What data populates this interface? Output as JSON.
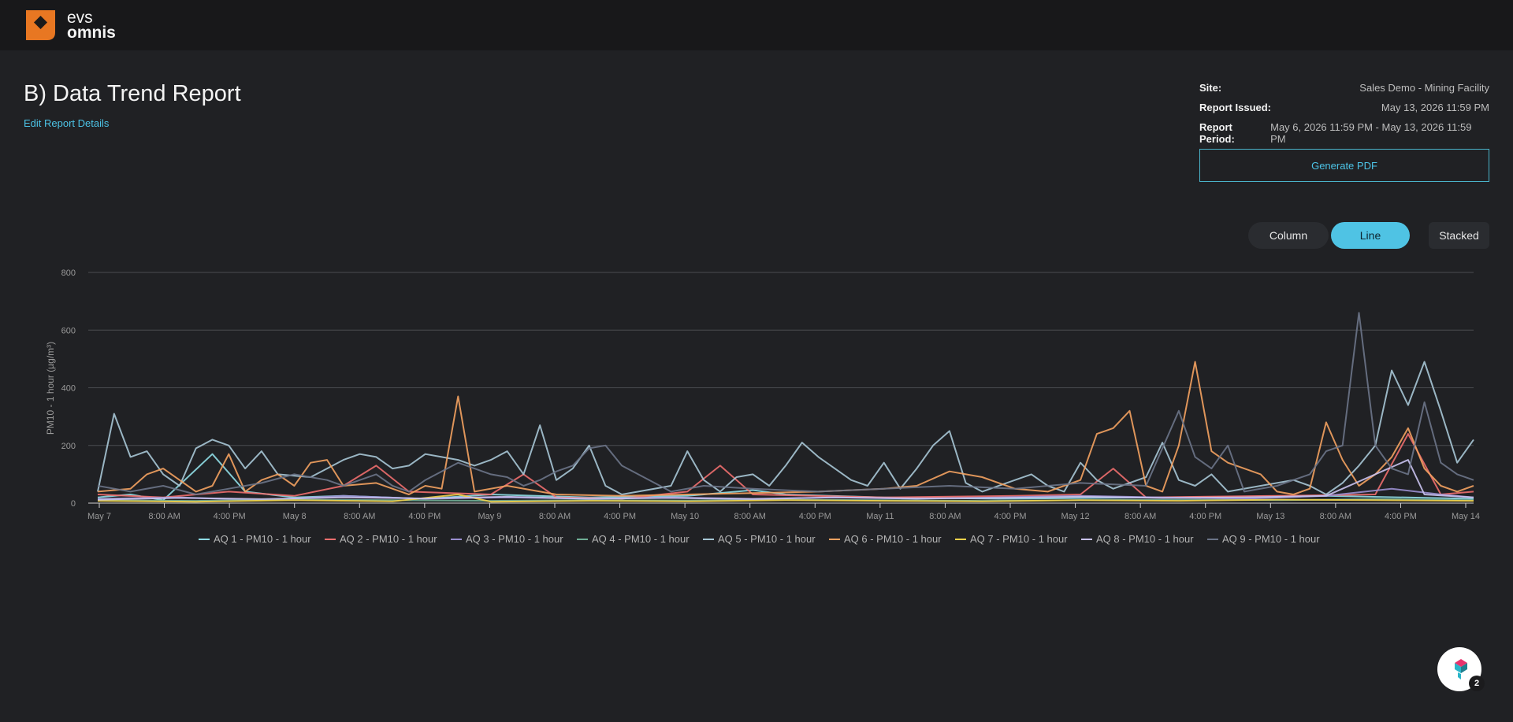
{
  "brand": {
    "line1": "evs",
    "line2": "omnis",
    "color": "#e87722"
  },
  "page": {
    "title": "B) Data Trend Report",
    "edit_link": "Edit Report Details"
  },
  "meta": {
    "site_label": "Site:",
    "site_value": "Sales Demo - Mining Facility",
    "issued_label": "Report Issued:",
    "issued_value": "May 13, 2026 11:59 PM",
    "period_label": "Report Period:",
    "period_value": "May 6, 2026 11:59 PM - May 13, 2026 11:59 PM"
  },
  "actions": {
    "generate_pdf": "Generate PDF"
  },
  "chart_types": {
    "column": "Column",
    "line": "Line",
    "stacked": "Stacked",
    "selected": "Line"
  },
  "chat": {
    "badge_count": "2"
  },
  "chart_data": {
    "type": "line",
    "ylabel": "PM10 - 1 hour (µg/m³)",
    "ylim": [
      0,
      800
    ],
    "yticks": [
      0,
      200,
      400,
      600,
      800
    ],
    "grid": true,
    "legend_position": "bottom",
    "x_start": "May 7",
    "x_end": "May 14",
    "x_tick_labels": [
      "May 7",
      "8:00 AM",
      "4:00 PM",
      "May 8",
      "8:00 AM",
      "4:00 PM",
      "May 9",
      "8:00 AM",
      "4:00 PM",
      "May 10",
      "8:00 AM",
      "4:00 PM",
      "May 11",
      "8:00 AM",
      "4:00 PM",
      "May 12",
      "8:00 AM",
      "4:00 PM",
      "May 13",
      "8:00 AM",
      "4:00 PM",
      "May 14"
    ],
    "series": [
      {
        "name": "AQ 1 - PM10 - 1 hour",
        "color": "#8fdde6",
        "points": [
          [
            0,
            20
          ],
          [
            4,
            30
          ],
          [
            8,
            10
          ],
          [
            14,
            170
          ],
          [
            18,
            40
          ],
          [
            24,
            20
          ],
          [
            30,
            25
          ],
          [
            40,
            15
          ],
          [
            48,
            30
          ],
          [
            60,
            20
          ],
          [
            72,
            25
          ],
          [
            80,
            45
          ],
          [
            84,
            30
          ],
          [
            96,
            20
          ],
          [
            110,
            15
          ],
          [
            130,
            20
          ],
          [
            150,
            25
          ],
          [
            168,
            15
          ]
        ]
      },
      {
        "name": "AQ 2 - PM10 - 1 hour",
        "color": "#ee6e6e",
        "points": [
          [
            0,
            30
          ],
          [
            8,
            20
          ],
          [
            16,
            40
          ],
          [
            24,
            25
          ],
          [
            30,
            60
          ],
          [
            34,
            130
          ],
          [
            38,
            40
          ],
          [
            48,
            30
          ],
          [
            52,
            100
          ],
          [
            56,
            20
          ],
          [
            64,
            15
          ],
          [
            72,
            40
          ],
          [
            76,
            130
          ],
          [
            80,
            30
          ],
          [
            96,
            20
          ],
          [
            112,
            25
          ],
          [
            120,
            30
          ],
          [
            124,
            120
          ],
          [
            128,
            20
          ],
          [
            144,
            25
          ],
          [
            156,
            30
          ],
          [
            160,
            240
          ],
          [
            164,
            30
          ],
          [
            168,
            40
          ]
        ]
      },
      {
        "name": "AQ 3 - PM10 - 1 hour",
        "color": "#9a8fd0",
        "points": [
          [
            0,
            15
          ],
          [
            10,
            20
          ],
          [
            20,
            10
          ],
          [
            30,
            25
          ],
          [
            40,
            15
          ],
          [
            50,
            20
          ],
          [
            60,
            15
          ],
          [
            70,
            20
          ],
          [
            80,
            15
          ],
          [
            90,
            20
          ],
          [
            100,
            15
          ],
          [
            110,
            20
          ],
          [
            120,
            25
          ],
          [
            130,
            20
          ],
          [
            140,
            15
          ],
          [
            150,
            25
          ],
          [
            158,
            50
          ],
          [
            164,
            30
          ],
          [
            168,
            20
          ]
        ]
      },
      {
        "name": "AQ 4 - PM10 - 1 hour",
        "color": "#6fae95",
        "points": [
          [
            0,
            10
          ],
          [
            12,
            8
          ],
          [
            24,
            12
          ],
          [
            36,
            10
          ],
          [
            48,
            8
          ],
          [
            60,
            10
          ],
          [
            72,
            9
          ],
          [
            84,
            12
          ],
          [
            96,
            10
          ],
          [
            108,
            8
          ],
          [
            120,
            10
          ],
          [
            132,
            12
          ],
          [
            144,
            10
          ],
          [
            156,
            14
          ],
          [
            168,
            10
          ]
        ]
      },
      {
        "name": "AQ 5 - PM10 - 1 hour",
        "color": "#a7c7d6",
        "points": [
          [
            0,
            40
          ],
          [
            2,
            310
          ],
          [
            4,
            160
          ],
          [
            6,
            180
          ],
          [
            8,
            100
          ],
          [
            10,
            60
          ],
          [
            12,
            190
          ],
          [
            14,
            220
          ],
          [
            16,
            200
          ],
          [
            18,
            120
          ],
          [
            20,
            180
          ],
          [
            22,
            100
          ],
          [
            26,
            90
          ],
          [
            28,
            120
          ],
          [
            30,
            150
          ],
          [
            32,
            170
          ],
          [
            34,
            160
          ],
          [
            36,
            120
          ],
          [
            38,
            130
          ],
          [
            40,
            170
          ],
          [
            42,
            160
          ],
          [
            44,
            150
          ],
          [
            46,
            130
          ],
          [
            48,
            150
          ],
          [
            50,
            180
          ],
          [
            52,
            100
          ],
          [
            54,
            270
          ],
          [
            56,
            80
          ],
          [
            58,
            120
          ],
          [
            60,
            200
          ],
          [
            62,
            60
          ],
          [
            64,
            30
          ],
          [
            66,
            40
          ],
          [
            70,
            60
          ],
          [
            72,
            180
          ],
          [
            74,
            80
          ],
          [
            76,
            40
          ],
          [
            78,
            90
          ],
          [
            80,
            100
          ],
          [
            82,
            60
          ],
          [
            84,
            130
          ],
          [
            86,
            210
          ],
          [
            88,
            160
          ],
          [
            90,
            120
          ],
          [
            92,
            80
          ],
          [
            94,
            60
          ],
          [
            96,
            140
          ],
          [
            98,
            50
          ],
          [
            100,
            120
          ],
          [
            102,
            200
          ],
          [
            104,
            250
          ],
          [
            106,
            70
          ],
          [
            108,
            40
          ],
          [
            112,
            80
          ],
          [
            114,
            100
          ],
          [
            116,
            60
          ],
          [
            118,
            40
          ],
          [
            120,
            140
          ],
          [
            122,
            80
          ],
          [
            124,
            50
          ],
          [
            128,
            90
          ],
          [
            130,
            210
          ],
          [
            132,
            80
          ],
          [
            134,
            60
          ],
          [
            136,
            100
          ],
          [
            138,
            40
          ],
          [
            142,
            60
          ],
          [
            146,
            80
          ],
          [
            148,
            60
          ],
          [
            150,
            30
          ],
          [
            152,
            70
          ],
          [
            154,
            130
          ],
          [
            156,
            200
          ],
          [
            158,
            460
          ],
          [
            160,
            340
          ],
          [
            162,
            490
          ],
          [
            164,
            320
          ],
          [
            166,
            140
          ],
          [
            168,
            220
          ]
        ]
      },
      {
        "name": "AQ 6 - PM10 - 1 hour",
        "color": "#f4a261",
        "points": [
          [
            0,
            40
          ],
          [
            4,
            50
          ],
          [
            6,
            100
          ],
          [
            8,
            120
          ],
          [
            10,
            80
          ],
          [
            12,
            40
          ],
          [
            14,
            60
          ],
          [
            16,
            170
          ],
          [
            18,
            40
          ],
          [
            20,
            80
          ],
          [
            22,
            100
          ],
          [
            24,
            60
          ],
          [
            26,
            140
          ],
          [
            28,
            150
          ],
          [
            30,
            60
          ],
          [
            34,
            70
          ],
          [
            38,
            30
          ],
          [
            40,
            60
          ],
          [
            42,
            50
          ],
          [
            44,
            370
          ],
          [
            46,
            40
          ],
          [
            50,
            60
          ],
          [
            56,
            30
          ],
          [
            64,
            25
          ],
          [
            72,
            30
          ],
          [
            80,
            35
          ],
          [
            88,
            40
          ],
          [
            96,
            50
          ],
          [
            100,
            60
          ],
          [
            104,
            110
          ],
          [
            108,
            90
          ],
          [
            112,
            50
          ],
          [
            116,
            40
          ],
          [
            118,
            60
          ],
          [
            120,
            80
          ],
          [
            122,
            240
          ],
          [
            124,
            260
          ],
          [
            126,
            320
          ],
          [
            128,
            60
          ],
          [
            130,
            40
          ],
          [
            132,
            200
          ],
          [
            134,
            490
          ],
          [
            136,
            180
          ],
          [
            138,
            140
          ],
          [
            140,
            120
          ],
          [
            142,
            100
          ],
          [
            144,
            40
          ],
          [
            146,
            30
          ],
          [
            148,
            50
          ],
          [
            150,
            280
          ],
          [
            152,
            150
          ],
          [
            154,
            60
          ],
          [
            156,
            100
          ],
          [
            158,
            160
          ],
          [
            160,
            260
          ],
          [
            162,
            120
          ],
          [
            164,
            60
          ],
          [
            166,
            40
          ],
          [
            168,
            60
          ]
        ]
      },
      {
        "name": "AQ 7 - PM10 - 1 hour",
        "color": "#f2d24b",
        "points": [
          [
            0,
            8
          ],
          [
            12,
            5
          ],
          [
            24,
            10
          ],
          [
            36,
            6
          ],
          [
            44,
            30
          ],
          [
            48,
            5
          ],
          [
            60,
            8
          ],
          [
            72,
            6
          ],
          [
            84,
            10
          ],
          [
            96,
            8
          ],
          [
            108,
            6
          ],
          [
            120,
            10
          ],
          [
            132,
            8
          ],
          [
            144,
            12
          ],
          [
            156,
            10
          ],
          [
            168,
            8
          ]
        ]
      },
      {
        "name": "AQ 8 - PM10 - 1 hour",
        "color": "#c9c2f0",
        "points": [
          [
            0,
            12
          ],
          [
            10,
            18
          ],
          [
            20,
            14
          ],
          [
            30,
            20
          ],
          [
            40,
            16
          ],
          [
            50,
            22
          ],
          [
            60,
            15
          ],
          [
            70,
            18
          ],
          [
            80,
            14
          ],
          [
            90,
            20
          ],
          [
            100,
            16
          ],
          [
            110,
            18
          ],
          [
            120,
            22
          ],
          [
            130,
            18
          ],
          [
            140,
            20
          ],
          [
            150,
            25
          ],
          [
            160,
            150
          ],
          [
            162,
            30
          ],
          [
            168,
            20
          ]
        ]
      },
      {
        "name": "AQ 9 - PM10 - 1 hour",
        "color": "#6b7488",
        "points": [
          [
            0,
            60
          ],
          [
            4,
            40
          ],
          [
            8,
            60
          ],
          [
            12,
            30
          ],
          [
            16,
            50
          ],
          [
            20,
            70
          ],
          [
            24,
            100
          ],
          [
            28,
            80
          ],
          [
            30,
            60
          ],
          [
            32,
            80
          ],
          [
            34,
            100
          ],
          [
            36,
            60
          ],
          [
            38,
            40
          ],
          [
            40,
            80
          ],
          [
            42,
            110
          ],
          [
            44,
            140
          ],
          [
            46,
            120
          ],
          [
            48,
            100
          ],
          [
            50,
            90
          ],
          [
            52,
            60
          ],
          [
            54,
            80
          ],
          [
            56,
            110
          ],
          [
            58,
            130
          ],
          [
            60,
            190
          ],
          [
            62,
            200
          ],
          [
            64,
            130
          ],
          [
            66,
            100
          ],
          [
            70,
            40
          ],
          [
            74,
            60
          ],
          [
            80,
            50
          ],
          [
            88,
            40
          ],
          [
            96,
            50
          ],
          [
            104,
            60
          ],
          [
            112,
            50
          ],
          [
            120,
            70
          ],
          [
            128,
            60
          ],
          [
            132,
            320
          ],
          [
            134,
            160
          ],
          [
            136,
            120
          ],
          [
            138,
            200
          ],
          [
            140,
            40
          ],
          [
            144,
            60
          ],
          [
            148,
            100
          ],
          [
            150,
            180
          ],
          [
            152,
            200
          ],
          [
            154,
            660
          ],
          [
            156,
            200
          ],
          [
            158,
            120
          ],
          [
            160,
            100
          ],
          [
            162,
            350
          ],
          [
            164,
            140
          ],
          [
            166,
            100
          ],
          [
            168,
            80
          ]
        ]
      }
    ]
  }
}
